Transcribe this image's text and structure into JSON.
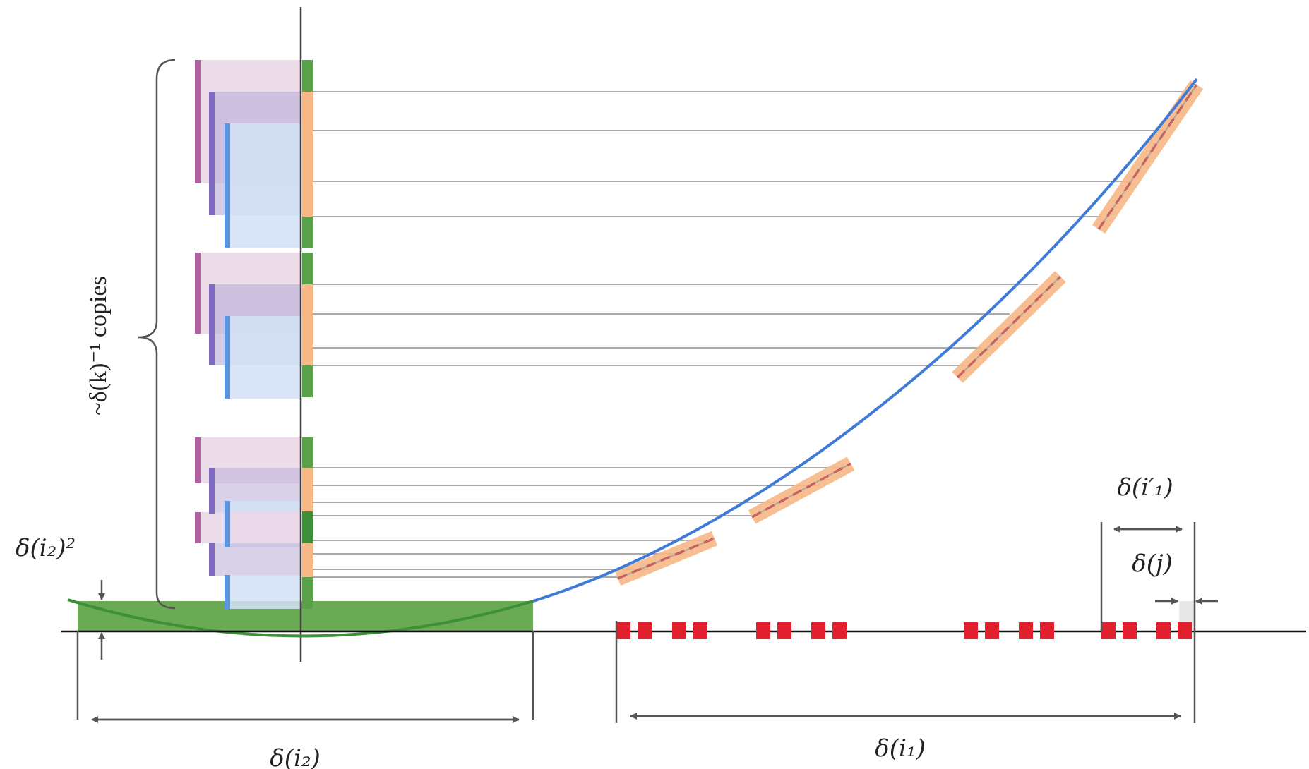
{
  "labels": {
    "copies": "~δ(k)⁻¹ copies",
    "delta_i2_sq": "δ(i₂)²",
    "delta_i2": "δ(i₂)",
    "delta_i1": "δ(i₁)",
    "delta_i1_prime": "δ(i′₁)",
    "delta_j": "δ(j)"
  },
  "colors": {
    "curve": "#3f7bd6",
    "green_band": "#6aaa55",
    "green_dark": "#3d8f3a",
    "orange": "#f7b886",
    "red": "#e0202c",
    "pink": "#ead7e5",
    "purple": "#c4b8dc",
    "lightblue": "#d3e2f6",
    "pink_bar": "#b060a0",
    "purple_bar": "#7e6ac0",
    "blue_bar": "#5b95e0",
    "guide": "#aaaaaa",
    "dim": "#555555",
    "axis": "#111111"
  }
}
